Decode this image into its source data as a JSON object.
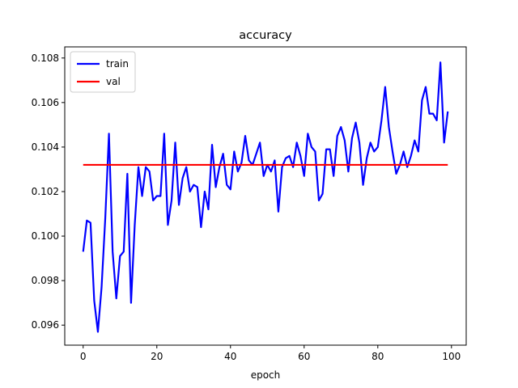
{
  "chart_data": {
    "type": "line",
    "title": "accuracy",
    "xlabel": "epoch",
    "ylabel": "",
    "xlim": [
      -5,
      104
    ],
    "ylim": [
      0.0951,
      0.1085
    ],
    "xticks": [
      0,
      20,
      40,
      60,
      80,
      100
    ],
    "xtick_labels": [
      "0",
      "20",
      "40",
      "60",
      "80",
      "100"
    ],
    "yticks": [
      0.096,
      0.098,
      0.1,
      0.102,
      0.104,
      0.106,
      0.108
    ],
    "ytick_labels": [
      "0.096",
      "0.098",
      "0.100",
      "0.102",
      "0.104",
      "0.106",
      "0.108"
    ],
    "grid": false,
    "legend_position": "top-left",
    "series": [
      {
        "name": "train",
        "color": "#0000ff",
        "x": [
          0,
          1,
          2,
          3,
          4,
          5,
          6,
          7,
          8,
          9,
          10,
          11,
          12,
          13,
          14,
          15,
          16,
          17,
          18,
          19,
          20,
          21,
          22,
          23,
          24,
          25,
          26,
          27,
          28,
          29,
          30,
          31,
          32,
          33,
          34,
          35,
          36,
          37,
          38,
          39,
          40,
          41,
          42,
          43,
          44,
          45,
          46,
          47,
          48,
          49,
          50,
          51,
          52,
          53,
          54,
          55,
          56,
          57,
          58,
          59,
          60,
          61,
          62,
          63,
          64,
          65,
          66,
          67,
          68,
          69,
          70,
          71,
          72,
          73,
          74,
          75,
          76,
          77,
          78,
          79,
          80,
          81,
          82,
          83,
          84,
          85,
          86,
          87,
          88,
          89,
          90,
          91,
          92,
          93,
          94,
          95,
          96,
          97,
          98,
          99
        ],
        "y": [
          0.0993,
          0.1007,
          0.1006,
          0.0971,
          0.0957,
          0.0977,
          0.1008,
          0.1046,
          0.0993,
          0.0972,
          0.0991,
          0.0993,
          0.1028,
          0.097,
          0.1005,
          0.1031,
          0.1018,
          0.1031,
          0.1029,
          0.1016,
          0.1018,
          0.1018,
          0.1046,
          0.1005,
          0.1016,
          0.1042,
          0.1014,
          0.1026,
          0.1031,
          0.102,
          0.1023,
          0.1022,
          0.1004,
          0.102,
          0.1012,
          0.1041,
          0.1022,
          0.1031,
          0.1037,
          0.1023,
          0.1021,
          0.1038,
          0.1029,
          0.1033,
          0.1045,
          0.1034,
          0.1032,
          0.1037,
          0.1042,
          0.1027,
          0.1032,
          0.1029,
          0.1034,
          0.1011,
          0.1031,
          0.1035,
          0.1036,
          0.1031,
          0.1042,
          0.1036,
          0.1027,
          0.1046,
          0.104,
          0.1038,
          0.1016,
          0.1019,
          0.1039,
          0.1039,
          0.1027,
          0.1045,
          0.1049,
          0.1043,
          0.1029,
          0.1044,
          0.1051,
          0.1042,
          0.1023,
          0.1035,
          0.1042,
          0.1038,
          0.104,
          0.1052,
          0.1067,
          0.1049,
          0.1038,
          0.1028,
          0.1032,
          0.1038,
          0.1031,
          0.1036,
          0.1043,
          0.1038,
          0.1061,
          0.1067,
          0.1055,
          0.1055,
          0.1052,
          0.1078,
          0.1042,
          0.1056
        ]
      },
      {
        "name": "val",
        "color": "#ff0000",
        "x": [
          0,
          99
        ],
        "y": [
          0.1032,
          0.1032
        ]
      }
    ]
  }
}
